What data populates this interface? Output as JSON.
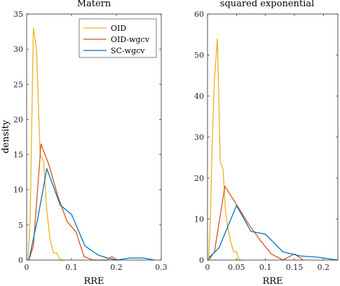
{
  "chart_data": [
    {
      "type": "line",
      "title": "Matern",
      "xlabel": "RRE",
      "ylabel": "density",
      "xlim": [
        0,
        0.3
      ],
      "ylim": [
        0,
        35
      ],
      "xticks": [
        "0",
        "0.1",
        "0.2",
        "0.3"
      ],
      "yticks": [
        "0",
        "5",
        "10",
        "15",
        "20",
        "25",
        "30",
        "35"
      ],
      "legend": "top-right",
      "series": [
        {
          "name": "OID",
          "color": "#EDB120",
          "x": [
            0.003,
            0.008,
            0.015,
            0.022,
            0.03,
            0.038,
            0.045,
            0.052,
            0.06,
            0.067,
            0.075,
            0.085
          ],
          "y": [
            0,
            6,
            33,
            30,
            15,
            14,
            7,
            3,
            1,
            1,
            0,
            0
          ]
        },
        {
          "name": "OID-wgcv",
          "color": "#D95319",
          "x": [
            0.005,
            0.015,
            0.032,
            0.05,
            0.07,
            0.09,
            0.11,
            0.128,
            0.148,
            0.165,
            0.178,
            0.19,
            0.2
          ],
          "y": [
            0,
            2,
            16.5,
            13.5,
            9,
            5.5,
            4,
            0.5,
            0,
            0,
            0,
            0.5,
            0
          ]
        },
        {
          "name": "SC-wgcv",
          "color": "#0072BD",
          "x": [
            0.005,
            0.025,
            0.045,
            0.075,
            0.1,
            0.13,
            0.16,
            0.18,
            0.2,
            0.23,
            0.26,
            0.285
          ],
          "y": [
            0,
            6,
            13,
            7.8,
            6.5,
            2,
            0.7,
            0.3,
            0,
            0.3,
            0.3,
            0
          ]
        }
      ]
    },
    {
      "type": "line",
      "title": "squared exponential",
      "xlabel": "RRE",
      "ylabel": "",
      "xlim": [
        0,
        0.225
      ],
      "ylim": [
        0,
        60
      ],
      "xticks": [
        "0",
        "0.05",
        "0.1",
        "0.15",
        "0.2"
      ],
      "yticks": [
        "0",
        "10",
        "20",
        "30",
        "40",
        "50",
        "60"
      ],
      "series": [
        {
          "name": "OID",
          "color": "#EDB120",
          "x": [
            0.002,
            0.005,
            0.008,
            0.012,
            0.017,
            0.022,
            0.027,
            0.031,
            0.035,
            0.04,
            0.045,
            0.05,
            0.055,
            0.06
          ],
          "y": [
            0,
            10,
            28,
            44,
            54,
            24,
            22,
            12,
            8,
            4.5,
            2,
            2,
            0,
            0
          ]
        },
        {
          "name": "OID-wgcv",
          "color": "#D95319",
          "x": [
            0.002,
            0.012,
            0.03,
            0.048,
            0.07,
            0.09,
            0.11,
            0.13,
            0.15,
            0.165
          ],
          "y": [
            0,
            2,
            18,
            14,
            9,
            5,
            1.5,
            0,
            1.5,
            0
          ]
        },
        {
          "name": "SC-wgcv",
          "color": "#0072BD",
          "x": [
            0.002,
            0.02,
            0.05,
            0.075,
            0.1,
            0.13,
            0.16,
            0.19,
            0.225
          ],
          "y": [
            0.5,
            3,
            13.3,
            7,
            6.3,
            2,
            1,
            0.7,
            0
          ]
        }
      ]
    }
  ]
}
